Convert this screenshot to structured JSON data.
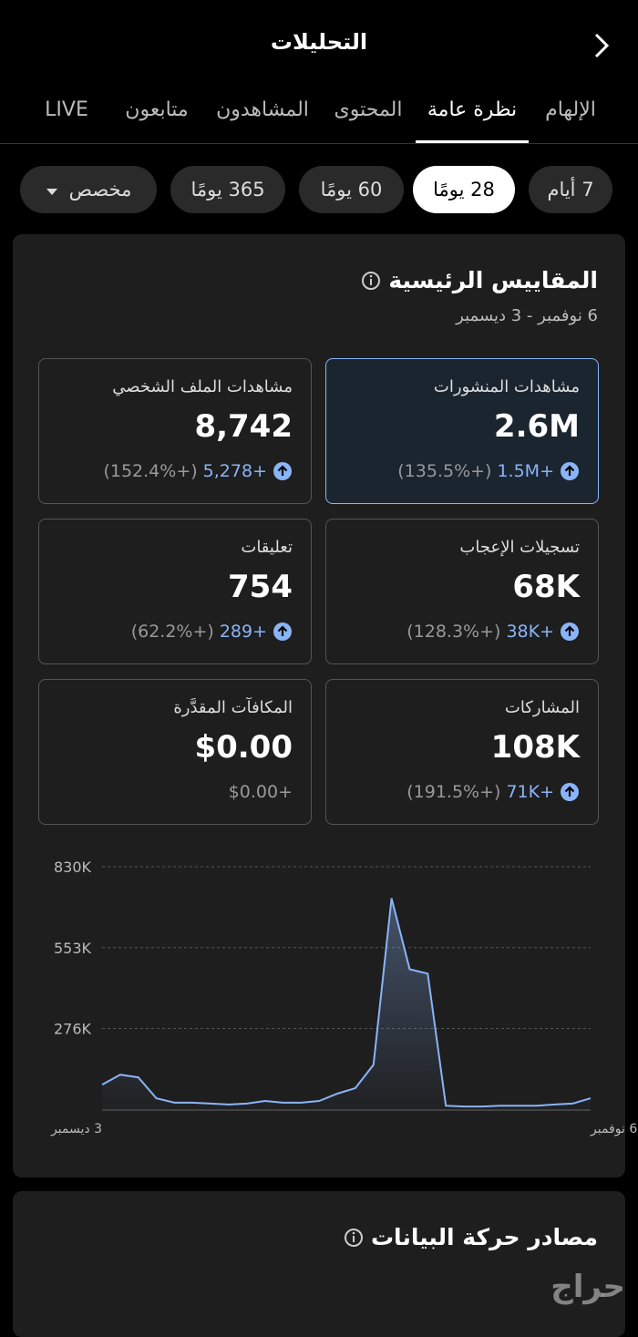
{
  "header": {
    "title": "التحليلات"
  },
  "tabs": [
    "الإلهام",
    "نظرة عامة",
    "المحتوى",
    "المشاهدون",
    "متابعون",
    "LIVE"
  ],
  "active_tab": 1,
  "ranges": [
    "7 أيام",
    "28 يومًا",
    "60 يومًا",
    "365 يومًا",
    "مخصص"
  ],
  "active_range": 1,
  "key_metrics": {
    "title": "المقاييس الرئيسية",
    "date_range": "6 نوفمبر - 3 ديسمبر",
    "selected_metric": 0,
    "metrics": [
      {
        "label": "مشاهدات المنشورات",
        "value": "2.6M",
        "change": "+1.5M",
        "percent": "(+135.5%)"
      },
      {
        "label": "مشاهدات الملف الشخصي",
        "value": "8,742",
        "change": "+5,278",
        "percent": "(+152.4%)"
      },
      {
        "label": "تسجيلات الإعجاب",
        "value": "68K",
        "change": "+38K",
        "percent": "(+128.3%)"
      },
      {
        "label": "تعليقات",
        "value": "754",
        "change": "+289",
        "percent": "(+62.2%)"
      },
      {
        "label": "المشاركات",
        "value": "108K",
        "change": "+71K",
        "percent": "(+191.5%)"
      },
      {
        "label": "المكافآت المقدَّرة",
        "value": "$0.00",
        "change": "+$0.00"
      }
    ]
  },
  "chart_data": {
    "type": "area",
    "categories": [
      "3 ديسمبر",
      null,
      null,
      null,
      null,
      null,
      null,
      null,
      null,
      null,
      null,
      null,
      null,
      null,
      null,
      null,
      null,
      null,
      null,
      null,
      null,
      null,
      null,
      null,
      null,
      null,
      null,
      "6 نوفمبر"
    ],
    "series": [
      {
        "name": "مشاهدات المنشورات",
        "color": "#8ab4f8",
        "values": [
          84000,
          118000,
          109000,
          37000,
          22000,
          22000,
          19000,
          16000,
          19000,
          28000,
          22000,
          22000,
          28000,
          53000,
          72000,
          152000,
          722000,
          479000,
          464000,
          12000,
          9000,
          9000,
          12000,
          12000,
          12000,
          16000,
          19000,
          37000
        ]
      }
    ],
    "ylim": [
      0,
      830000
    ],
    "yticks": [
      {
        "value": 830000,
        "label": "830K"
      },
      {
        "value": 553000,
        "label": "553K"
      },
      {
        "value": 276000,
        "label": "276K"
      }
    ],
    "grid": true
  },
  "traffic_sources": {
    "title": "مصادر حركة البيانات"
  },
  "watermark": "حراج"
}
